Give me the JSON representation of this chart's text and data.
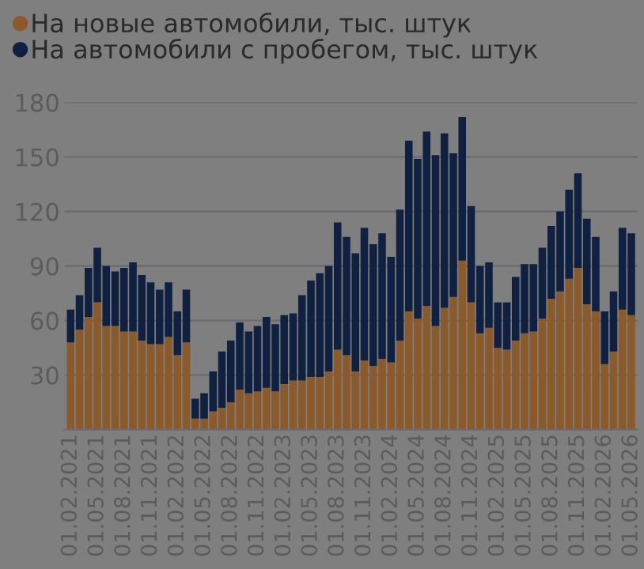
{
  "chart_data": {
    "type": "bar",
    "stacked": true,
    "legend": "top left",
    "grid": "y",
    "marker": "circle",
    "categories": [
      "01.02.2021",
      null,
      null,
      "01.05.2021",
      null,
      null,
      "01.08.2021",
      null,
      null,
      "01.11.2021",
      null,
      null,
      "01.02.2022",
      null,
      null,
      "01.05.2022",
      null,
      null,
      "01.08.2022",
      null,
      null,
      "01.11.2022",
      null,
      null,
      "01.02.2023",
      null,
      null,
      "01.05.2023",
      null,
      null,
      "01.08.2023",
      null,
      null,
      "01.11.2023",
      null,
      null,
      "01.02.2024",
      null,
      null,
      "01.05.2024",
      null,
      null,
      "01.08.2024",
      null,
      null,
      "01.11.2024",
      null,
      null,
      "01.02.2025",
      null,
      null,
      "01.05.2025",
      null,
      null,
      "01.08.2025",
      null,
      null,
      "01.11.2025",
      null,
      null,
      "01.02.2026",
      null,
      null,
      "01.05.2026"
    ],
    "ylim": [
      0,
      180
    ],
    "yticks": [
      30,
      60,
      90,
      120,
      150,
      180
    ],
    "series": [
      {
        "name": "На новые автомобили, тыс. штук",
        "color": "#8b5a2b",
        "values": [
          48,
          55,
          62,
          70,
          57,
          57,
          54,
          54,
          49,
          47,
          47,
          51,
          41,
          48,
          6,
          6,
          10,
          12,
          15,
          22,
          20,
          21,
          23,
          21,
          25,
          27,
          27,
          29,
          29,
          32,
          44,
          41,
          32,
          38,
          35,
          39,
          37,
          49,
          65,
          61,
          68,
          57,
          67,
          73,
          93,
          70,
          53,
          56,
          45,
          44,
          49,
          53,
          54,
          61,
          72,
          76,
          83,
          89,
          69,
          65,
          36,
          43,
          66,
          63
        ]
      },
      {
        "name": "На автомобили с пробегом, тыс. штук",
        "color": "#0f2040",
        "values": [
          18,
          19,
          27,
          30,
          33,
          30,
          35,
          38,
          36,
          34,
          30,
          30,
          24,
          29,
          11,
          14,
          22,
          31,
          34,
          37,
          34,
          36,
          39,
          37,
          38,
          37,
          47,
          53,
          57,
          58,
          70,
          65,
          65,
          73,
          67,
          69,
          58,
          72,
          94,
          88,
          96,
          94,
          96,
          79,
          79,
          53,
          37,
          36,
          25,
          26,
          35,
          38,
          37,
          39,
          40,
          44,
          49,
          52,
          47,
          41,
          29,
          33,
          45,
          45
        ]
      }
    ]
  }
}
